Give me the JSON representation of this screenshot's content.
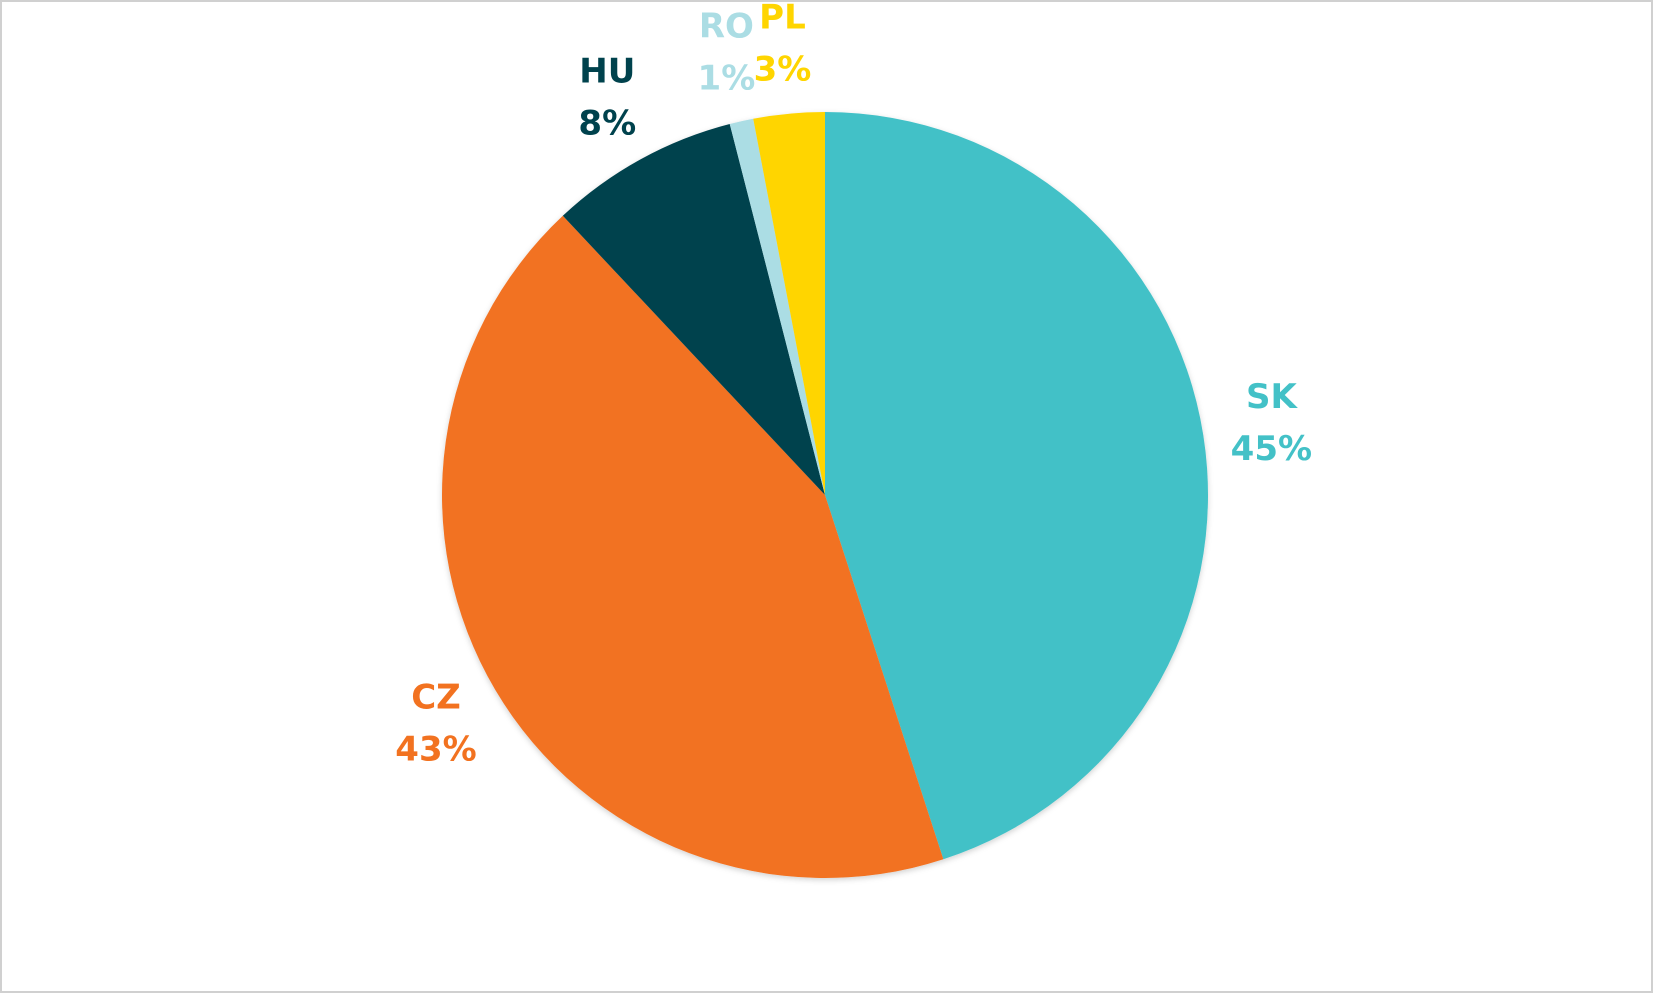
{
  "chart_data": {
    "type": "pie",
    "categories": [
      "SK",
      "CZ",
      "HU",
      "RO",
      "PL"
    ],
    "values": [
      45,
      43,
      8,
      1,
      3
    ],
    "value_labels": [
      "45%",
      "43%",
      "8%",
      "1%",
      "3%"
    ],
    "colors": [
      "#43c1c7",
      "#f27220",
      "#00424d",
      "#abdde4",
      "#ffd500"
    ]
  }
}
